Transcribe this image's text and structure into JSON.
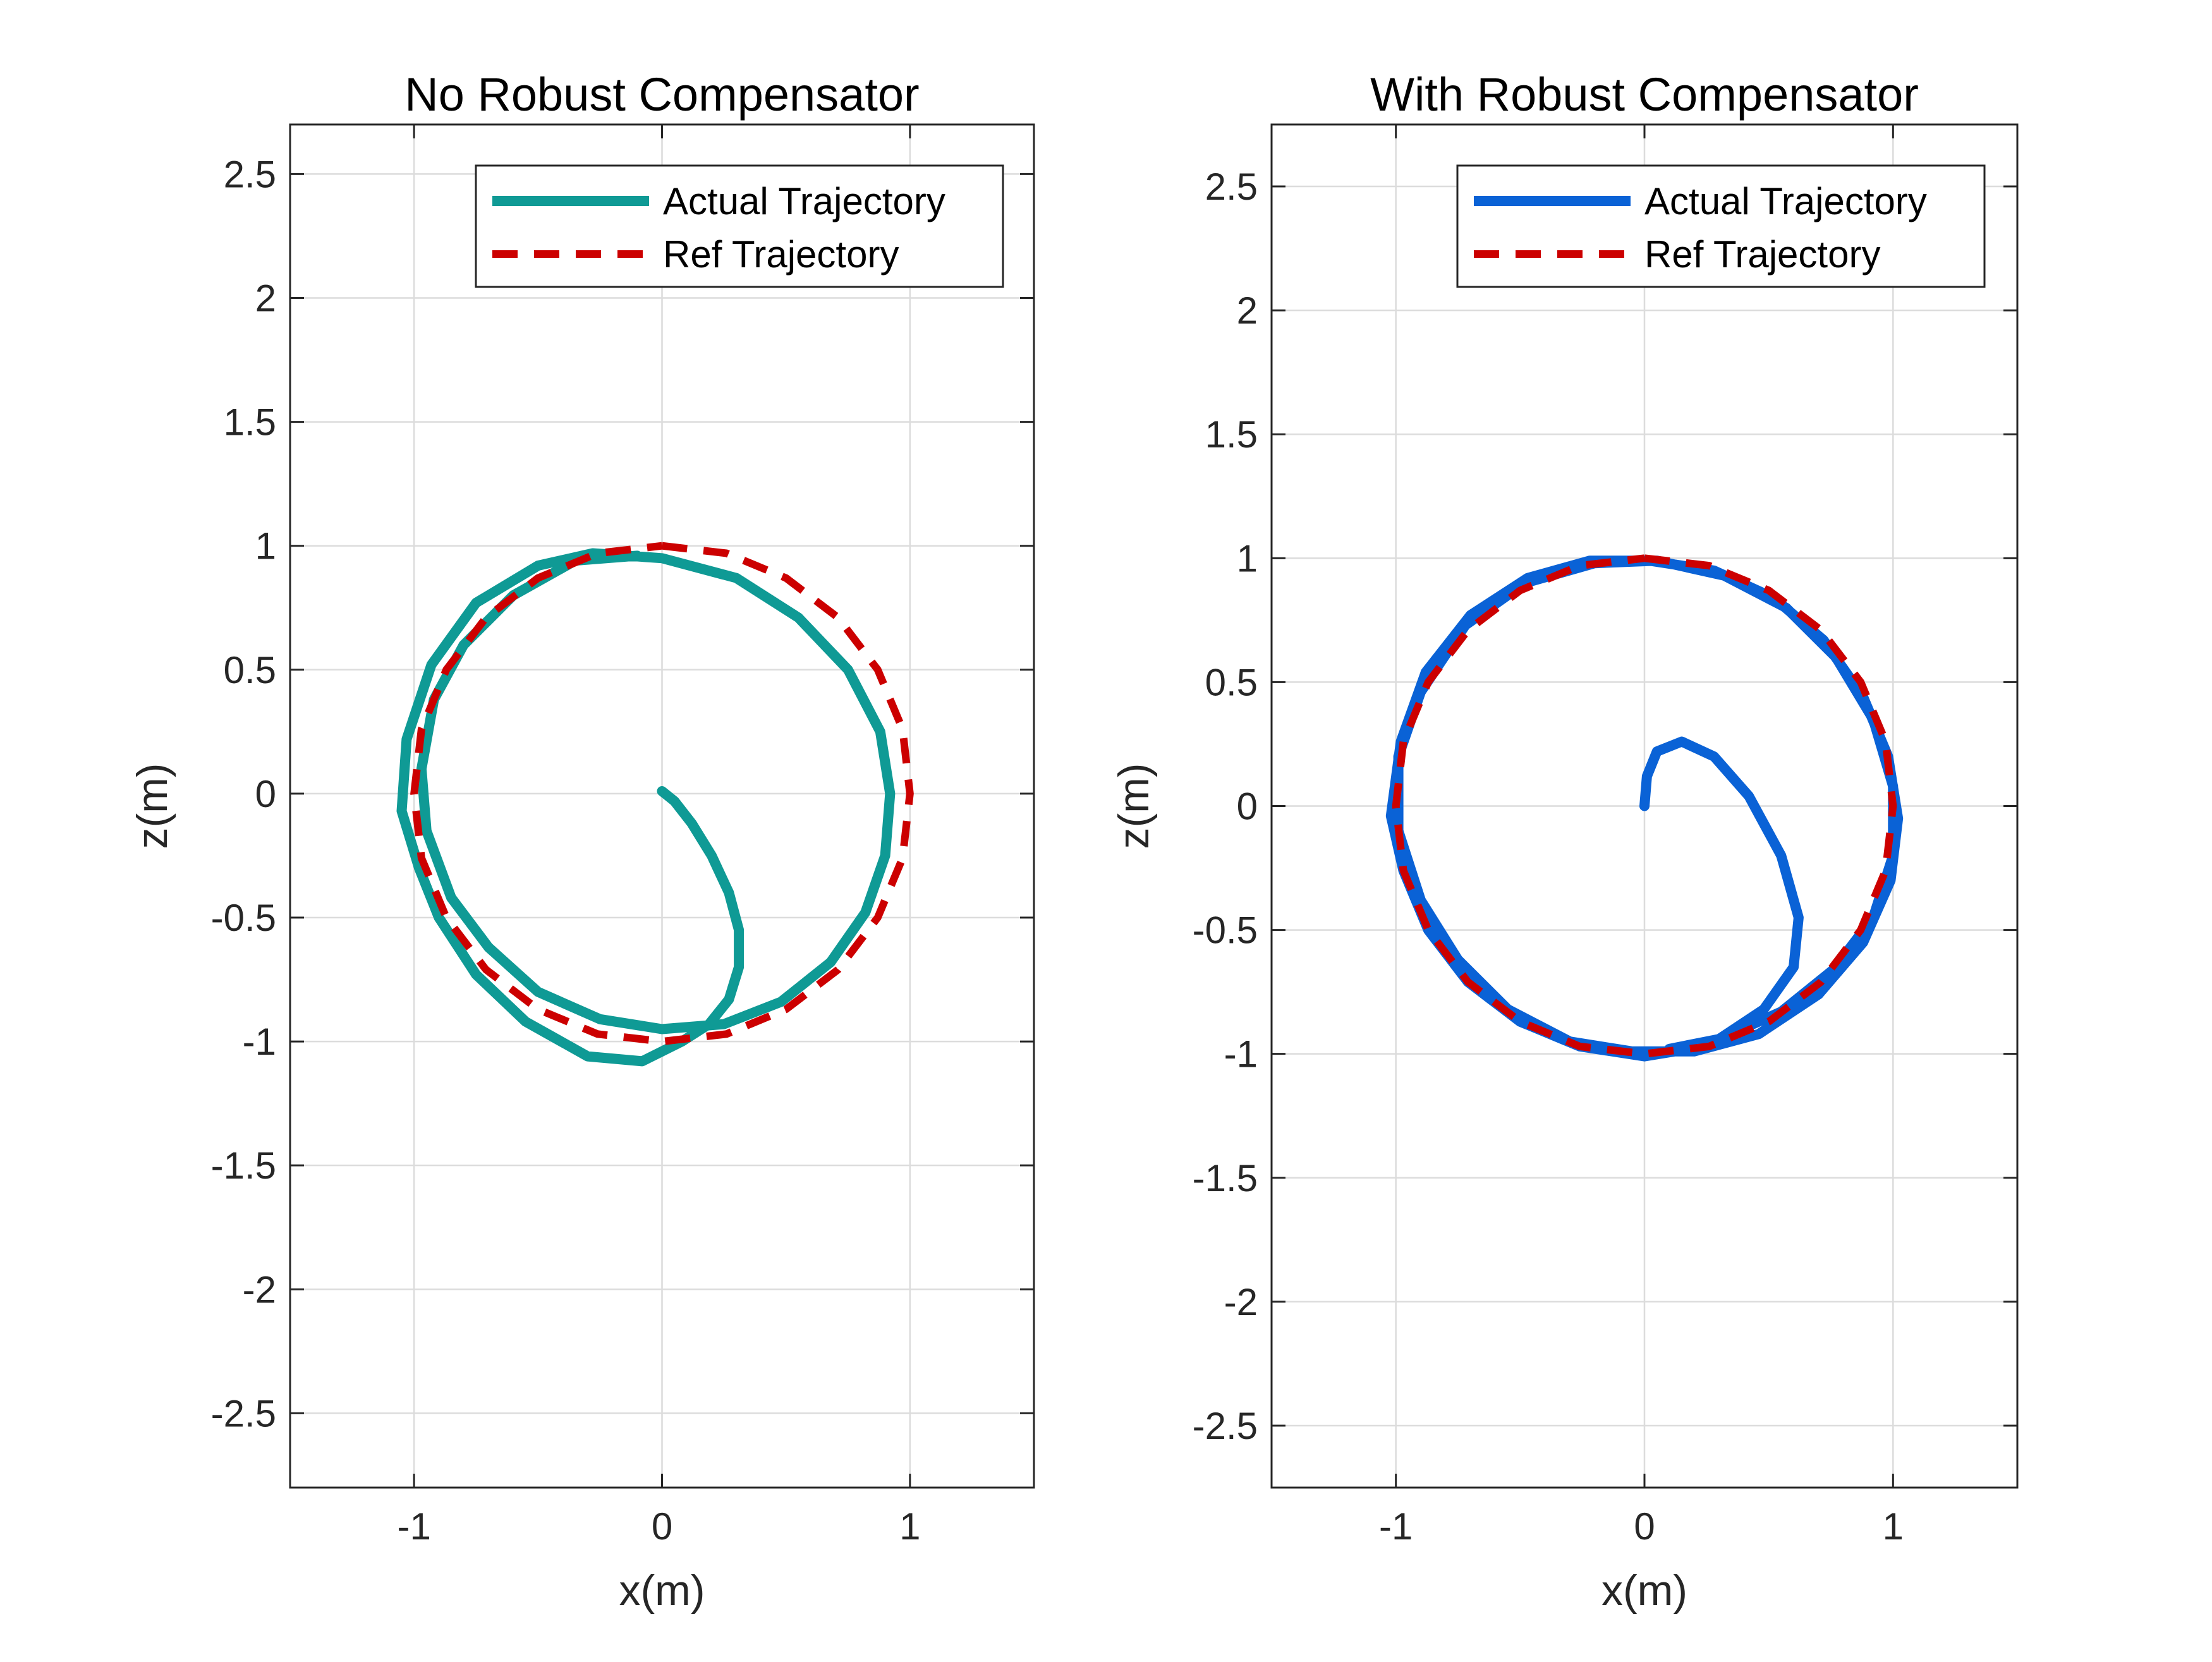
{
  "chart_data": [
    {
      "type": "line",
      "title": "No Robust Compensator",
      "xlabel": "x(m)",
      "ylabel": "z(m)",
      "xlim": [
        -1.5,
        1.5
      ],
      "ylim": [
        -2.8,
        2.7
      ],
      "xticks": [
        -1,
        0,
        1
      ],
      "xtick_labels": [
        "-1",
        "0",
        "1"
      ],
      "yticks": [
        -2.5,
        -2,
        -1.5,
        -1,
        -0.5,
        0,
        0.5,
        1,
        1.5,
        2,
        2.5
      ],
      "ytick_labels": [
        "-2.5",
        "-2",
        "-1.5",
        "-1",
        "-0.5",
        "0",
        "0.5",
        "1",
        "1.5",
        "2",
        "2.5"
      ],
      "grid": true,
      "legend_position": "top-right",
      "series": [
        {
          "name": "Actual Trajectory",
          "style": "solid",
          "color": "#0f9a95",
          "points": [
            [
              0,
              0.01
            ],
            [
              0.05,
              -0.03
            ],
            [
              0.12,
              -0.12
            ],
            [
              0.2,
              -0.25
            ],
            [
              0.27,
              -0.4
            ],
            [
              0.31,
              -0.55
            ],
            [
              0.31,
              -0.7
            ],
            [
              0.27,
              -0.83
            ],
            [
              0.19,
              -0.93
            ],
            [
              0.08,
              -1.0
            ],
            [
              -0.08,
              -1.08
            ],
            [
              -0.3,
              -1.06
            ],
            [
              -0.55,
              -0.92
            ],
            [
              -0.75,
              -0.73
            ],
            [
              -0.9,
              -0.5
            ],
            [
              -0.98,
              -0.3
            ],
            [
              -1.05,
              -0.07
            ],
            [
              -1.03,
              0.22
            ],
            [
              -0.93,
              0.52
            ],
            [
              -0.75,
              0.77
            ],
            [
              -0.5,
              0.92
            ],
            [
              -0.28,
              0.97
            ],
            [
              0.0,
              0.95
            ],
            [
              0.3,
              0.87
            ],
            [
              0.55,
              0.71
            ],
            [
              0.75,
              0.5
            ],
            [
              0.88,
              0.25
            ],
            [
              0.92,
              0.0
            ],
            [
              0.9,
              -0.25
            ],
            [
              0.82,
              -0.48
            ],
            [
              0.68,
              -0.68
            ],
            [
              0.48,
              -0.84
            ],
            [
              0.25,
              -0.93
            ],
            [
              0.0,
              -0.95
            ],
            [
              -0.25,
              -0.91
            ],
            [
              -0.5,
              -0.8
            ],
            [
              -0.7,
              -0.62
            ],
            [
              -0.85,
              -0.42
            ],
            [
              -0.95,
              -0.15
            ],
            [
              -0.97,
              0.1
            ],
            [
              -0.92,
              0.38
            ],
            [
              -0.8,
              0.6
            ],
            [
              -0.6,
              0.8
            ],
            [
              -0.35,
              0.94
            ],
            [
              -0.1,
              0.96
            ]
          ]
        },
        {
          "name": "Ref Trajectory",
          "style": "dashed",
          "color": "#cc0000",
          "circle": {
            "cx": 0,
            "cy": 0,
            "r": 1
          },
          "points": [
            [
              0.0,
              1.0
            ],
            [
              0.26,
              0.97
            ],
            [
              0.5,
              0.87
            ],
            [
              0.71,
              0.71
            ],
            [
              0.87,
              0.5
            ],
            [
              0.97,
              0.26
            ],
            [
              1.0,
              0.0
            ],
            [
              0.97,
              -0.26
            ],
            [
              0.87,
              -0.5
            ],
            [
              0.71,
              -0.71
            ],
            [
              0.5,
              -0.87
            ],
            [
              0.26,
              -0.97
            ],
            [
              0.0,
              -1.0
            ],
            [
              -0.26,
              -0.97
            ],
            [
              -0.5,
              -0.87
            ],
            [
              -0.71,
              -0.71
            ],
            [
              -0.87,
              -0.5
            ],
            [
              -0.97,
              -0.26
            ],
            [
              -1.0,
              0.0
            ],
            [
              -0.97,
              0.26
            ],
            [
              -0.87,
              0.5
            ],
            [
              -0.71,
              0.71
            ],
            [
              -0.5,
              0.87
            ],
            [
              -0.26,
              0.97
            ],
            [
              0.0,
              1.0
            ]
          ]
        }
      ]
    },
    {
      "type": "line",
      "title": "With Robust Compensator",
      "xlabel": "x(m)",
      "ylabel": "z(m)",
      "xlim": [
        -1.5,
        1.5
      ],
      "ylim": [
        -2.75,
        2.75
      ],
      "xticks": [
        -1,
        0,
        1
      ],
      "xtick_labels": [
        "-1",
        "0",
        "1"
      ],
      "yticks": [
        -2.5,
        -2,
        -1.5,
        -1,
        -0.5,
        0,
        0.5,
        1,
        1.5,
        2,
        2.5
      ],
      "ytick_labels": [
        "-2.5",
        "-2",
        "-1.5",
        "-1",
        "-0.5",
        "0",
        "0.5",
        "1",
        "1.5",
        "2",
        "2.5"
      ],
      "grid": true,
      "legend_position": "top-right",
      "series": [
        {
          "name": "Actual Trajectory",
          "style": "solid",
          "color": "#0a62d6",
          "points": [
            [
              0,
              0.0
            ],
            [
              0.01,
              0.12
            ],
            [
              0.05,
              0.22
            ],
            [
              0.15,
              0.26
            ],
            [
              0.28,
              0.2
            ],
            [
              0.42,
              0.04
            ],
            [
              0.55,
              -0.2
            ],
            [
              0.62,
              -0.45
            ],
            [
              0.6,
              -0.65
            ],
            [
              0.48,
              -0.82
            ],
            [
              0.3,
              -0.94
            ],
            [
              0.12,
              -0.99
            ],
            [
              0.0,
              -1.01
            ],
            [
              -0.26,
              -0.97
            ],
            [
              -0.5,
              -0.87
            ],
            [
              -0.71,
              -0.71
            ],
            [
              -0.87,
              -0.5
            ],
            [
              -0.97,
              -0.26
            ],
            [
              -1.02,
              -0.04
            ],
            [
              -0.98,
              0.26
            ],
            [
              -0.88,
              0.54
            ],
            [
              -0.7,
              0.77
            ],
            [
              -0.47,
              0.92
            ],
            [
              -0.22,
              0.99
            ],
            [
              0.02,
              0.99
            ],
            [
              0.28,
              0.95
            ],
            [
              0.52,
              0.84
            ],
            [
              0.72,
              0.67
            ],
            [
              0.88,
              0.44
            ],
            [
              0.98,
              0.2
            ],
            [
              1.02,
              -0.05
            ],
            [
              0.99,
              -0.3
            ],
            [
              0.88,
              -0.55
            ],
            [
              0.7,
              -0.76
            ],
            [
              0.46,
              -0.92
            ],
            [
              0.2,
              -0.99
            ],
            [
              -0.05,
              -0.99
            ],
            [
              -0.3,
              -0.95
            ],
            [
              -0.55,
              -0.82
            ],
            [
              -0.75,
              -0.62
            ],
            [
              -0.9,
              -0.38
            ],
            [
              -0.99,
              -0.1
            ],
            [
              -0.99,
              0.2
            ],
            [
              -0.9,
              0.46
            ],
            [
              -0.72,
              0.73
            ],
            [
              -0.48,
              0.9
            ],
            [
              -0.2,
              0.98
            ],
            [
              0.05,
              0.99
            ],
            [
              0.32,
              0.93
            ],
            [
              0.57,
              0.8
            ],
            [
              0.77,
              0.6
            ],
            [
              0.92,
              0.35
            ],
            [
              1.0,
              0.08
            ],
            [
              1.0,
              -0.2
            ],
            [
              0.92,
              -0.45
            ],
            [
              0.76,
              -0.66
            ],
            [
              0.55,
              -0.83
            ],
            [
              0.3,
              -0.94
            ],
            [
              0.1,
              -0.98
            ]
          ]
        },
        {
          "name": "Ref Trajectory",
          "style": "dashed",
          "color": "#cc0000",
          "circle": {
            "cx": 0,
            "cy": 0,
            "r": 1
          },
          "points": [
            [
              0.0,
              1.0
            ],
            [
              0.26,
              0.97
            ],
            [
              0.5,
              0.87
            ],
            [
              0.71,
              0.71
            ],
            [
              0.87,
              0.5
            ],
            [
              0.97,
              0.26
            ],
            [
              1.0,
              0.0
            ],
            [
              0.97,
              -0.26
            ],
            [
              0.87,
              -0.5
            ],
            [
              0.71,
              -0.71
            ],
            [
              0.5,
              -0.87
            ],
            [
              0.26,
              -0.97
            ],
            [
              0.0,
              -1.0
            ],
            [
              -0.26,
              -0.97
            ],
            [
              -0.5,
              -0.87
            ],
            [
              -0.71,
              -0.71
            ],
            [
              -0.87,
              -0.5
            ],
            [
              -0.97,
              -0.26
            ],
            [
              -1.0,
              0.0
            ],
            [
              -0.97,
              0.26
            ],
            [
              -0.87,
              0.5
            ],
            [
              -0.71,
              0.71
            ],
            [
              -0.5,
              0.87
            ],
            [
              -0.26,
              0.97
            ],
            [
              0.0,
              1.0
            ]
          ]
        }
      ]
    }
  ]
}
